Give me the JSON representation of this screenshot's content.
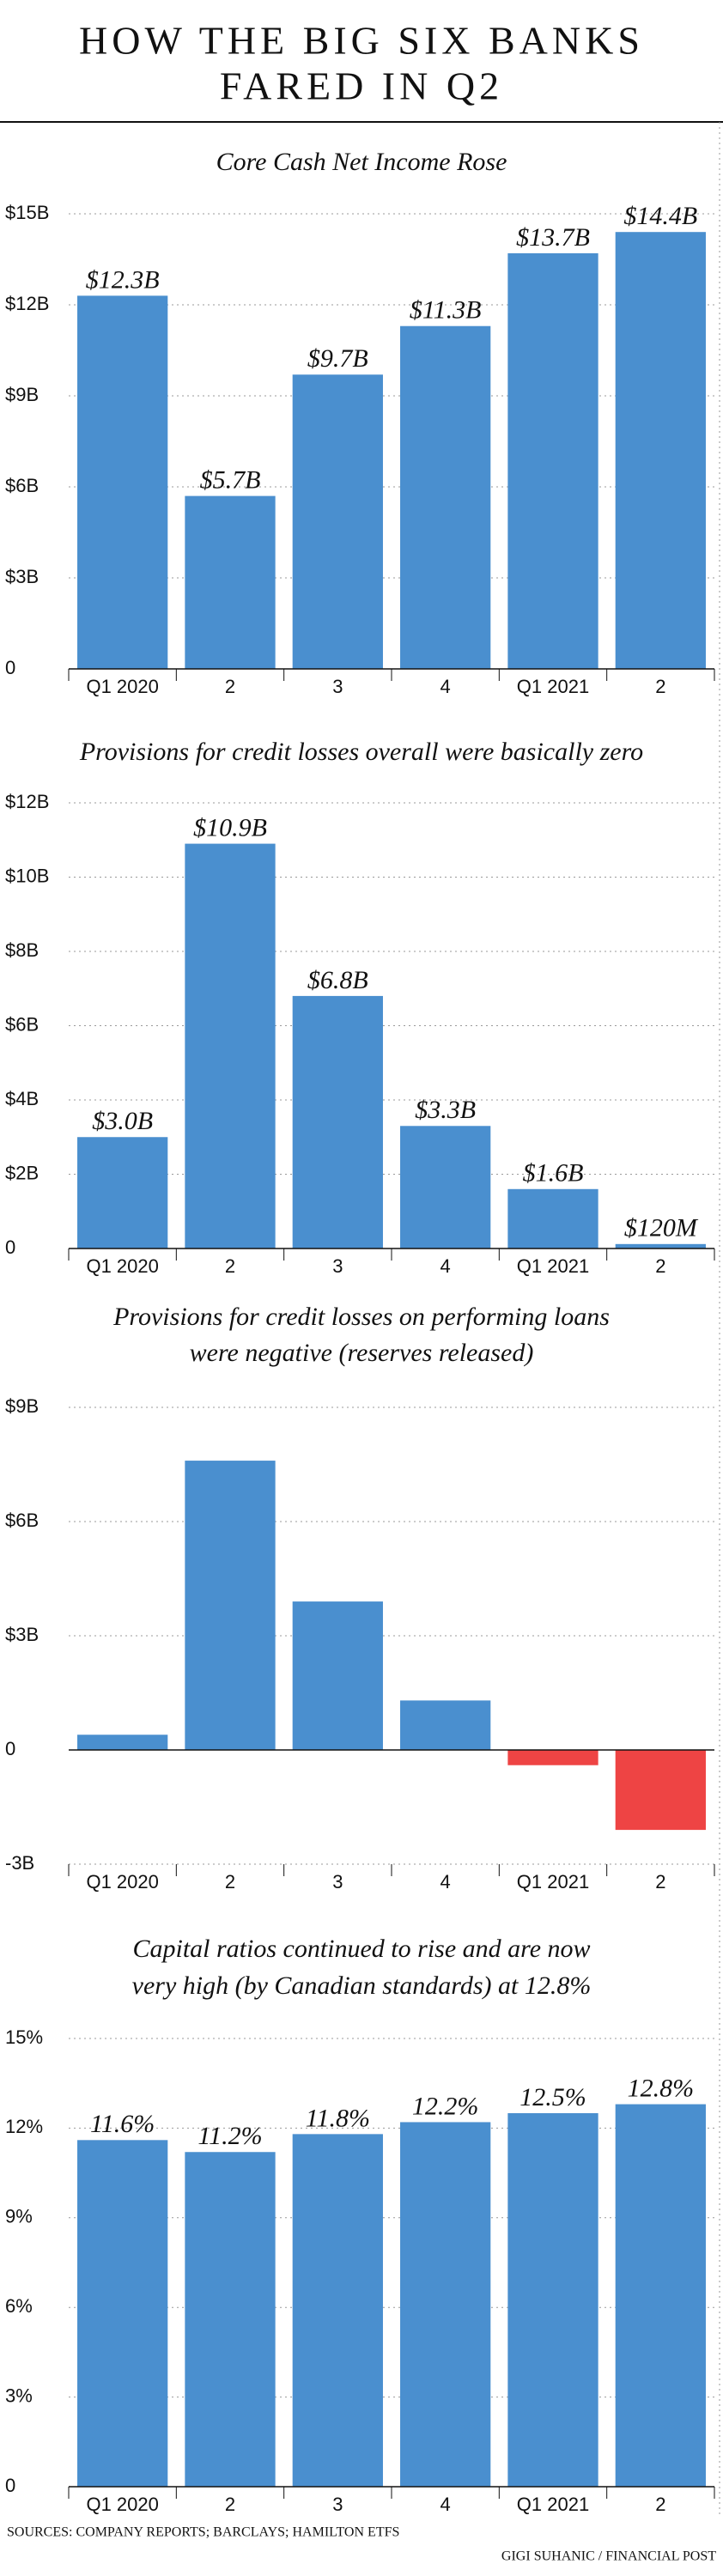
{
  "header": {
    "title_lines": [
      "HOW THE BIG SIX BANKS",
      "FARED IN Q2"
    ]
  },
  "chart_data": [
    {
      "type": "bar",
      "title": "Core Cash Net Income Rose",
      "color": "#4a8fcf",
      "categories": [
        "Q1 2020",
        "2",
        "3",
        "4",
        "Q1 2021",
        "2"
      ],
      "values": [
        12.3,
        5.7,
        9.7,
        11.3,
        13.7,
        14.4
      ],
      "value_labels": [
        "$12.3B",
        "$5.7B",
        "$9.7B",
        "$11.3B",
        "$13.7B",
        "$14.4B"
      ],
      "ylim": [
        0,
        15
      ],
      "yticks": [
        0,
        {
          "value": 3,
          "label": "$3B"
        },
        {
          "value": 6,
          "label": "$6B"
        },
        {
          "value": 9,
          "label": "$9B"
        },
        {
          "value": 12,
          "label": "$12B"
        },
        {
          "value": 15,
          "label": "$15B"
        }
      ],
      "grid": true
    },
    {
      "type": "bar",
      "title": "Provisions for credit losses overall were basically zero",
      "color": "#4a8fcf",
      "categories": [
        "Q1 2020",
        "2",
        "3",
        "4",
        "Q1 2021",
        "2"
      ],
      "values": [
        3.0,
        10.9,
        6.8,
        3.3,
        1.6,
        0.12
      ],
      "value_labels": [
        "$3.0B",
        "$10.9B",
        "$6.8B",
        "$3.3B",
        "$1.6B",
        "$120M"
      ],
      "ylim": [
        0,
        12
      ],
      "yticks": [
        0,
        {
          "value": 2,
          "label": "$2B"
        },
        {
          "value": 4,
          "label": "$4B"
        },
        {
          "value": 6,
          "label": "$6B"
        },
        {
          "value": 8,
          "label": "$8B"
        },
        {
          "value": 10,
          "label": "$10B"
        },
        {
          "value": 12,
          "label": "$12B"
        }
      ],
      "grid": true
    },
    {
      "type": "bar",
      "title": [
        "Provisions for credit losses on performing loans",
        "were negative (reserves released)"
      ],
      "color": "#4a8fcf",
      "negative_color": "#ee4444",
      "categories": [
        "Q1 2020",
        "2",
        "3",
        "4",
        "Q1 2021",
        "2"
      ],
      "values": [
        0.4,
        7.6,
        3.9,
        1.3,
        -0.4,
        -2.1
      ],
      "ylim": [
        -3,
        9
      ],
      "yticks": [
        {
          "value": -3,
          "label": "-3B"
        },
        0,
        {
          "value": 3,
          "label": "$3B"
        },
        {
          "value": 6,
          "label": "$6B"
        },
        {
          "value": 9,
          "label": "$9B"
        }
      ],
      "grid": true
    },
    {
      "type": "bar",
      "title": [
        "Capital ratios continued to rise and are now",
        "very high (by Canadian standards) at 12.8%"
      ],
      "color": "#4a8fcf",
      "categories": [
        "Q1 2020",
        "2",
        "3",
        "4",
        "Q1 2021",
        "2"
      ],
      "values": [
        11.6,
        11.2,
        11.8,
        12.2,
        12.5,
        12.8
      ],
      "value_labels": [
        "11.6%",
        "11.2%",
        "11.8%",
        "12.2%",
        "12.5%",
        "12.8%"
      ],
      "ylim": [
        0,
        15
      ],
      "yticks": [
        0,
        {
          "value": 3,
          "label": "3%"
        },
        {
          "value": 6,
          "label": "6%"
        },
        {
          "value": 9,
          "label": "9%"
        },
        {
          "value": 12,
          "label": "12%"
        },
        {
          "value": 15,
          "label": "15%"
        }
      ],
      "grid": true
    }
  ],
  "footer": {
    "sources": "SOURCES: COMPANY REPORTS; BARCLAYS; HAMILTON ETFS",
    "credit": "GIGI SUHANIC / FINANCIAL POST"
  }
}
